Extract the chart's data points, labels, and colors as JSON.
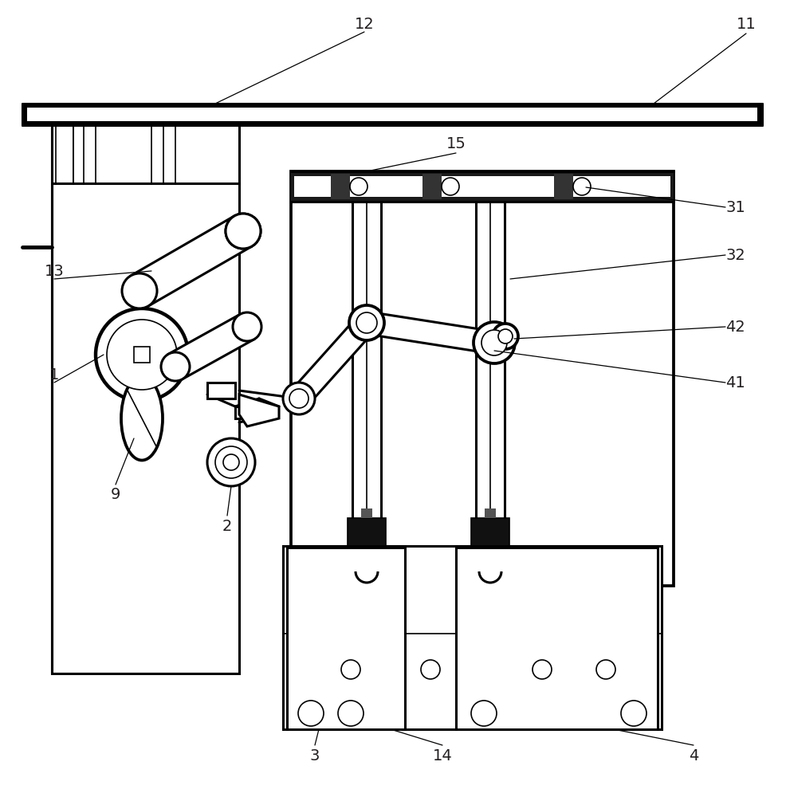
{
  "bg_color": "#ffffff",
  "lc": "#000000",
  "lc_dark": "#1a1a1a",
  "lw": 2.2,
  "lw_thick": 3.5,
  "lw_thin": 1.2,
  "lw_ann": 0.9,
  "label_fs": 14,
  "label_color": "#231f20",
  "fig_w": 9.87,
  "fig_h": 10.0,
  "dpi": 100
}
